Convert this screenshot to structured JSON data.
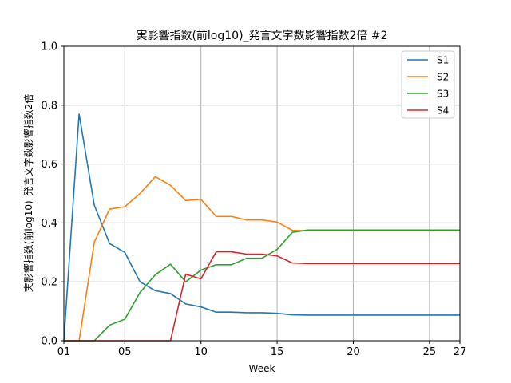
{
  "chart_data": {
    "type": "line",
    "title": "実影響指数(前log10)_発言文字数影響指数2倍 #2",
    "xlabel": "Week",
    "ylabel": "実影響指数(前log10)_発言文字数影響指数2倍",
    "x": [
      1,
      2,
      3,
      4,
      5,
      6,
      7,
      8,
      9,
      10,
      11,
      12,
      13,
      14,
      15,
      16,
      17,
      18,
      19,
      20,
      21,
      22,
      23,
      24,
      25,
      26,
      27
    ],
    "xlim": [
      1,
      27
    ],
    "ylim": [
      0,
      1.0
    ],
    "xticks": [
      {
        "value": 1,
        "label": "01"
      },
      {
        "value": 5,
        "label": "05"
      },
      {
        "value": 10,
        "label": "10"
      },
      {
        "value": 15,
        "label": "15"
      },
      {
        "value": 20,
        "label": "20"
      },
      {
        "value": 25,
        "label": "25"
      },
      {
        "value": 27,
        "label": "27"
      }
    ],
    "yticks": [
      {
        "value": 0.0,
        "label": "0.0"
      },
      {
        "value": 0.2,
        "label": "0.2"
      },
      {
        "value": 0.4,
        "label": "0.4"
      },
      {
        "value": 0.6,
        "label": "0.6"
      },
      {
        "value": 0.8,
        "label": "0.8"
      },
      {
        "value": 1.0,
        "label": "1.0"
      }
    ],
    "grid": true,
    "legend_position": "top-right",
    "series": [
      {
        "name": "S1",
        "color": "#1f77b4",
        "values": [
          0.0,
          0.77,
          0.46,
          0.33,
          0.3,
          0.2,
          0.17,
          0.16,
          0.125,
          0.115,
          0.097,
          0.097,
          0.095,
          0.095,
          0.093,
          0.088,
          0.087,
          0.087,
          0.087,
          0.087,
          0.087,
          0.087,
          0.087,
          0.087,
          0.087,
          0.087,
          0.087
        ]
      },
      {
        "name": "S2",
        "color": "#ff7f0e",
        "values": [
          0.0,
          0.0,
          0.335,
          0.447,
          0.455,
          0.5,
          0.557,
          0.528,
          0.476,
          0.48,
          0.422,
          0.422,
          0.41,
          0.41,
          0.403,
          0.375,
          0.373,
          0.373,
          0.373,
          0.373,
          0.373,
          0.373,
          0.373,
          0.373,
          0.373,
          0.373,
          0.373
        ]
      },
      {
        "name": "S3",
        "color": "#2ca02c",
        "values": [
          0.0,
          0.0,
          0.0,
          0.053,
          0.073,
          0.164,
          0.224,
          0.26,
          0.2,
          0.24,
          0.258,
          0.258,
          0.28,
          0.28,
          0.31,
          0.368,
          0.376,
          0.376,
          0.376,
          0.376,
          0.376,
          0.376,
          0.376,
          0.376,
          0.376,
          0.376,
          0.376
        ]
      },
      {
        "name": "S4",
        "color": "#d62728",
        "values": [
          0.0,
          0.0,
          0.0,
          0.0,
          0.0,
          0.0,
          0.0,
          0.0,
          0.226,
          0.21,
          0.302,
          0.302,
          0.294,
          0.294,
          0.288,
          0.264,
          0.262,
          0.262,
          0.262,
          0.262,
          0.262,
          0.262,
          0.262,
          0.262,
          0.262,
          0.262,
          0.262
        ]
      }
    ]
  }
}
